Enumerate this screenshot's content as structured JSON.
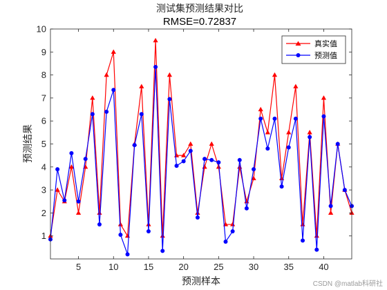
{
  "chart_data": {
    "type": "line",
    "title": "测试集预测结果对比",
    "subtitle": "RMSE=0.72837",
    "xlabel": "预测样本",
    "ylabel": "预测结果",
    "xlim": [
      1,
      44
    ],
    "ylim": [
      0,
      10
    ],
    "xticks": [
      5,
      10,
      15,
      20,
      25,
      30,
      35,
      40
    ],
    "yticks": [
      1,
      2,
      3,
      4,
      5,
      6,
      7,
      8,
      9,
      10
    ],
    "grid": false,
    "legend_position": "top-right",
    "x": [
      1,
      2,
      3,
      4,
      5,
      6,
      7,
      8,
      9,
      10,
      11,
      12,
      13,
      14,
      15,
      16,
      17,
      18,
      19,
      20,
      21,
      22,
      23,
      24,
      25,
      26,
      27,
      28,
      29,
      30,
      31,
      32,
      33,
      34,
      35,
      36,
      37,
      38,
      39,
      40,
      41,
      42,
      43,
      44
    ],
    "series": [
      {
        "name": "真实值",
        "color": "#ff0000",
        "marker": "triangle",
        "values": [
          1,
          3,
          2.5,
          4,
          2,
          4,
          7,
          2,
          8,
          9,
          1.5,
          1,
          5,
          7.5,
          1.5,
          9.5,
          1,
          8,
          4.5,
          4.5,
          5,
          2,
          4,
          5,
          4,
          1.5,
          1.5,
          4,
          2.5,
          3.5,
          6.5,
          5.5,
          8,
          3.5,
          5.5,
          7.5,
          1.5,
          5.5,
          1,
          7,
          2,
          5,
          3,
          2
        ]
      },
      {
        "name": "预测值",
        "color": "#0000ff",
        "marker": "circle",
        "values": [
          0.85,
          3.9,
          2.55,
          4.6,
          2.5,
          4.35,
          6.3,
          1.5,
          6.4,
          7.35,
          1.05,
          0.2,
          4.95,
          6.3,
          1.2,
          8.35,
          0.35,
          6.95,
          4.05,
          4.25,
          4.7,
          1.8,
          4.35,
          4.3,
          4.2,
          0.75,
          1.2,
          4.3,
          2.2,
          3.9,
          6.1,
          4.8,
          6.1,
          3.15,
          4.85,
          6.1,
          0.8,
          5.3,
          0.4,
          6.2,
          2.3,
          5,
          3,
          2.3
        ]
      }
    ]
  },
  "watermark": "CSDN @matlab科研社"
}
